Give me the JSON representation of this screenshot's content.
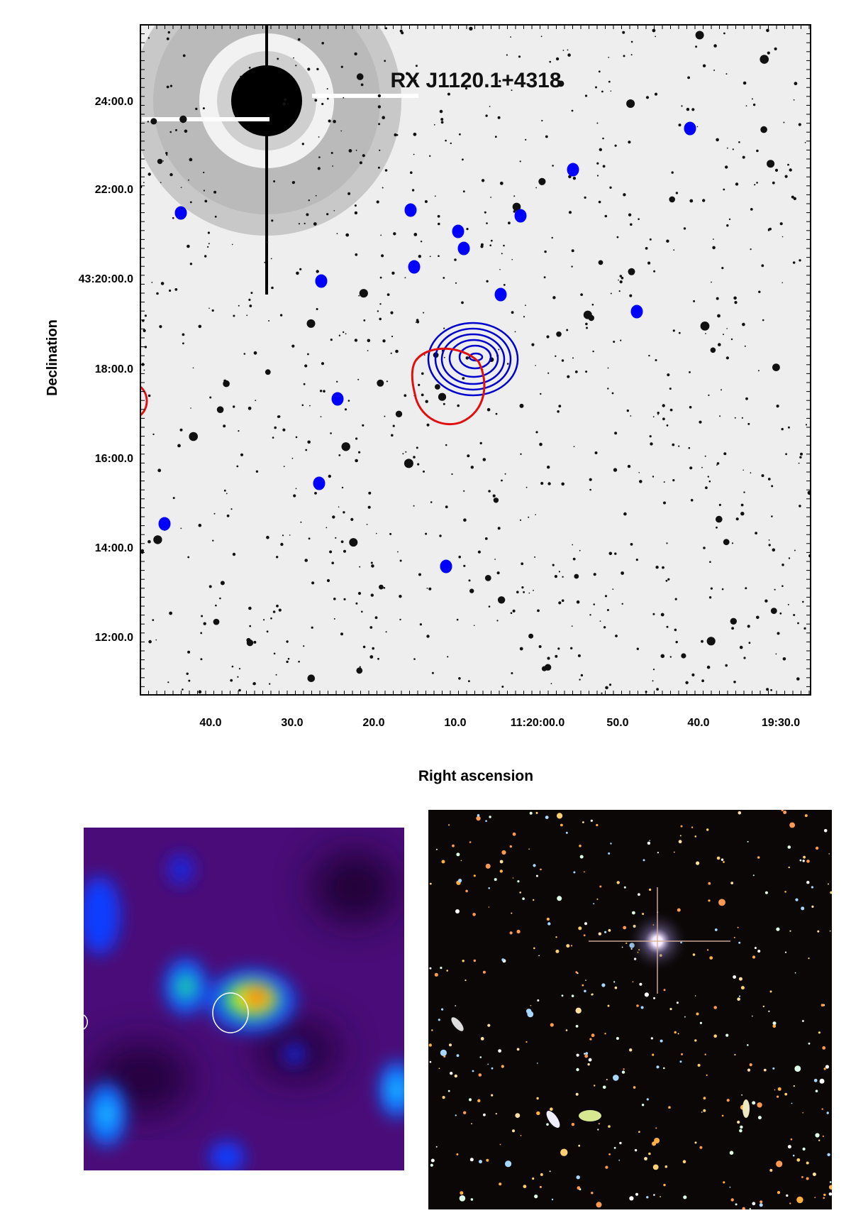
{
  "title": "RX J1120.1+4318",
  "y_axis": {
    "label": "Declination",
    "ticks": [
      "24:00.0",
      "22:00.0",
      "43:20:00.0",
      "18:00.0",
      "16:00.0",
      "14:00.0",
      "12:00.0"
    ]
  },
  "x_axis": {
    "label": "Right ascension",
    "ticks": [
      "40.0",
      "30.0",
      "20.0",
      "10.0",
      "11:20:00.0",
      "50.0",
      "40.0",
      "19:30.0"
    ]
  }
}
